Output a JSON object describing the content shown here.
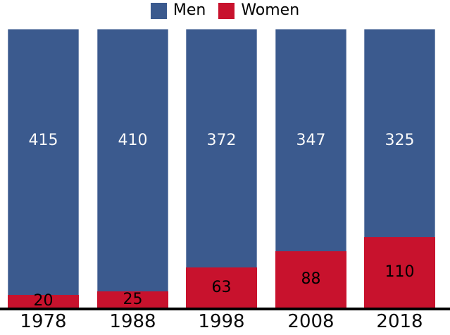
{
  "chart_data": {
    "type": "bar",
    "stacked": true,
    "title": "",
    "xlabel": "",
    "ylabel": "",
    "categories": [
      "1978",
      "1988",
      "1998",
      "2008",
      "2018"
    ],
    "series": [
      {
        "name": "Men",
        "color": "#3B5A8E",
        "label_color": "#FAFAFA",
        "values": [
          415,
          410,
          372,
          347,
          325
        ]
      },
      {
        "name": "Women",
        "color": "#C8122D",
        "label_color": "#000000",
        "values": [
          20,
          25,
          63,
          88,
          110
        ]
      }
    ],
    "total_per_bar": 435,
    "legend_position": "top",
    "grid": false,
    "axis_color": "#000000",
    "segment_order_bottom_to_top": [
      "Women",
      "Men"
    ]
  }
}
